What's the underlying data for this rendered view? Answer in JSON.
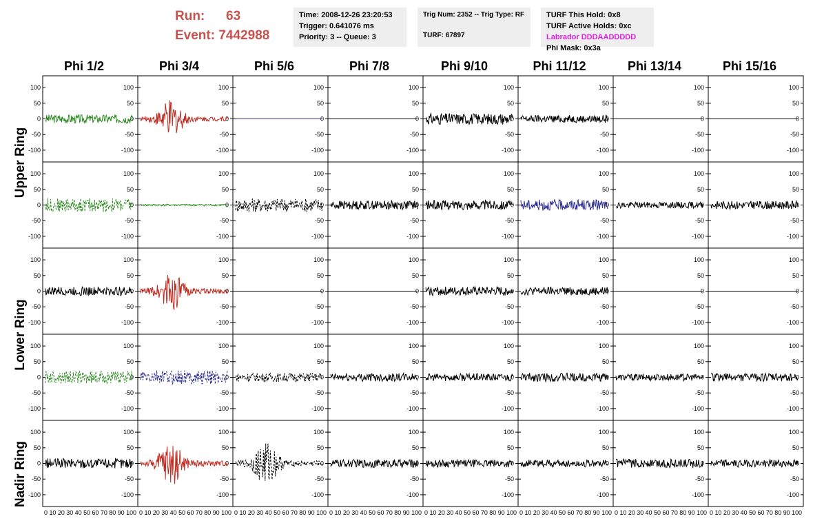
{
  "run": {
    "run_label": "Run:",
    "run_value": "63",
    "event_label": "Event:",
    "event_value": "7442988"
  },
  "time_panel": {
    "time": "Time: 2008-12-26 23:20:53",
    "trigger": "Trigger: 0.641076 ms",
    "priority": "Priority: 3 -- Queue: 3"
  },
  "trig_panel": {
    "trig": "Trig Num: 2352 -- Trig Type: RF",
    "turf": "TURF: 67897"
  },
  "turf_panel": {
    "this_hold": "TURF This Hold: 0x8",
    "active_holds": "TURF Active Holds: 0xc",
    "labrador": "Labrador DDDAADDDDD",
    "phi_mask": "Phi Mask: 0x3a"
  },
  "columns": [
    "Phi 1/2",
    "Phi 3/4",
    "Phi 5/6",
    "Phi 7/8",
    "Phi 9/10",
    "Phi 11/12",
    "Phi 13/14",
    "Phi 15/16"
  ],
  "ring_labels": {
    "upper": "Upper Ring",
    "lower": "Lower Ring",
    "nadir": "Nadir Ring"
  },
  "colors": {
    "black": "#000000",
    "green": "#2e8b22",
    "red": "#c02a20",
    "blue": "#2a2a90",
    "header_red": "#c8524e",
    "magenta": "#e020e0"
  },
  "y_ticks": [
    "100",
    "50",
    "0",
    "-50",
    "-100"
  ],
  "x_ticks": [
    "0",
    "10",
    "20",
    "30",
    "40",
    "50",
    "60",
    "70",
    "80",
    "90",
    "100"
  ],
  "x_tick_label_string": "0 10 20 30 40 50 60 70 80 90 100",
  "rows": [
    [
      {
        "color": "green",
        "amp": 14,
        "style": "solid",
        "burst": false
      },
      {
        "color": "red",
        "amp": 22,
        "style": "solid",
        "burst": true
      },
      {
        "color": "blue",
        "amp": 0,
        "style": "solid",
        "burst": false
      },
      {
        "color": "black",
        "amp": 0,
        "style": "solid",
        "burst": false
      },
      {
        "color": "black",
        "amp": 18,
        "style": "solid",
        "burst": false
      },
      {
        "color": "black",
        "amp": 12,
        "style": "solid",
        "burst": false
      },
      {
        "color": "black",
        "amp": 0,
        "style": "solid",
        "burst": false
      },
      {
        "color": "black",
        "amp": 0,
        "style": "solid",
        "burst": false
      }
    ],
    [
      {
        "color": "green",
        "amp": 22,
        "style": "dashed",
        "burst": false
      },
      {
        "color": "green",
        "amp": 3,
        "style": "solid",
        "burst": false
      },
      {
        "color": "black",
        "amp": 22,
        "style": "dashed",
        "burst": false
      },
      {
        "color": "black",
        "amp": 14,
        "style": "solid",
        "burst": false
      },
      {
        "color": "black",
        "amp": 15,
        "style": "solid",
        "burst": false
      },
      {
        "color": "blue",
        "amp": 17,
        "style": "solid",
        "burst": false
      },
      {
        "color": "black",
        "amp": 10,
        "style": "solid",
        "burst": false
      },
      {
        "color": "black",
        "amp": 13,
        "style": "solid",
        "burst": false
      }
    ],
    [
      {
        "color": "black",
        "amp": 14,
        "style": "solid",
        "burst": false
      },
      {
        "color": "red",
        "amp": 24,
        "style": "solid",
        "burst": true
      },
      {
        "color": "black",
        "amp": 0,
        "style": "solid",
        "burst": false
      },
      {
        "color": "black",
        "amp": 0,
        "style": "solid",
        "burst": false
      },
      {
        "color": "black",
        "amp": 14,
        "style": "solid",
        "burst": false
      },
      {
        "color": "black",
        "amp": 13,
        "style": "solid",
        "burst": false
      },
      {
        "color": "black",
        "amp": 0,
        "style": "solid",
        "burst": false
      },
      {
        "color": "black",
        "amp": 0,
        "style": "solid",
        "burst": false
      }
    ],
    [
      {
        "color": "green",
        "amp": 20,
        "style": "dashed",
        "burst": false
      },
      {
        "color": "blue",
        "amp": 22,
        "style": "dashed",
        "burst": false
      },
      {
        "color": "black",
        "amp": 14,
        "style": "dashed",
        "burst": false
      },
      {
        "color": "black",
        "amp": 13,
        "style": "solid",
        "burst": false
      },
      {
        "color": "black",
        "amp": 12,
        "style": "solid",
        "burst": false
      },
      {
        "color": "black",
        "amp": 14,
        "style": "solid",
        "burst": false
      },
      {
        "color": "black",
        "amp": 11,
        "style": "solid",
        "burst": false
      },
      {
        "color": "black",
        "amp": 13,
        "style": "solid",
        "burst": false
      }
    ],
    [
      {
        "color": "black",
        "amp": 16,
        "style": "solid",
        "burst": false
      },
      {
        "color": "red",
        "amp": 26,
        "style": "solid",
        "burst": true
      },
      {
        "color": "black",
        "amp": 26,
        "style": "dashed",
        "burst": true
      },
      {
        "color": "black",
        "amp": 13,
        "style": "solid",
        "burst": false
      },
      {
        "color": "black",
        "amp": 12,
        "style": "solid",
        "burst": false
      },
      {
        "color": "black",
        "amp": 12,
        "style": "solid",
        "burst": false
      },
      {
        "color": "black",
        "amp": 14,
        "style": "solid",
        "burst": false
      },
      {
        "color": "black",
        "amp": 12,
        "style": "solid",
        "burst": false
      }
    ]
  ]
}
